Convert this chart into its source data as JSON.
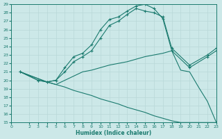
{
  "xlabel": "Humidex (Indice chaleur)",
  "bg_color": "#cce8e8",
  "line_color": "#1a7a6e",
  "grid_color": "#b8d8d8",
  "xlim": [
    0,
    23
  ],
  "ylim": [
    15,
    29
  ],
  "xticks": [
    0,
    2,
    3,
    4,
    5,
    6,
    7,
    8,
    9,
    10,
    11,
    12,
    13,
    14,
    15,
    16,
    17,
    18,
    19,
    20,
    21,
    22,
    23
  ],
  "yticks": [
    15,
    16,
    17,
    18,
    19,
    20,
    21,
    22,
    23,
    24,
    25,
    26,
    27,
    28,
    29
  ],
  "lines": [
    {
      "x": [
        1,
        3,
        4,
        5,
        6,
        7,
        8,
        9,
        10,
        11,
        12,
        13,
        14,
        15,
        16,
        17,
        18,
        20,
        22,
        23
      ],
      "y": [
        21,
        20,
        19.8,
        20,
        21.5,
        22.8,
        23.2,
        24.2,
        26.0,
        27.2,
        27.5,
        28.2,
        28.8,
        29.0,
        28.5,
        27.3,
        23.5,
        21.5,
        22.8,
        23.5
      ],
      "has_markers": true
    },
    {
      "x": [
        1,
        3,
        4,
        5,
        6,
        7,
        8,
        9,
        10,
        11,
        12,
        13,
        14,
        15,
        16,
        17,
        18,
        20,
        22,
        23
      ],
      "y": [
        21,
        20,
        19.8,
        20,
        21.0,
        22.2,
        22.8,
        23.5,
        25.0,
        26.5,
        27.0,
        27.8,
        28.5,
        28.2,
        28.0,
        27.5,
        23.8,
        21.8,
        23.0,
        23.8
      ],
      "has_markers": true
    },
    {
      "x": [
        1,
        3,
        4,
        5,
        6,
        7,
        8,
        9,
        10,
        11,
        12,
        13,
        14,
        15,
        16,
        17,
        18,
        19,
        20,
        21,
        22,
        23
      ],
      "y": [
        21,
        20.2,
        19.8,
        19.5,
        20.0,
        20.5,
        21.0,
        21.2,
        21.5,
        21.8,
        22.0,
        22.2,
        22.5,
        22.8,
        23.0,
        23.2,
        23.5,
        21.2,
        21.0,
        19.2,
        17.5,
        15.0
      ],
      "has_markers": false
    },
    {
      "x": [
        1,
        3,
        4,
        5,
        6,
        7,
        8,
        9,
        10,
        11,
        12,
        13,
        14,
        15,
        16,
        17,
        18,
        19,
        20,
        21,
        22,
        23
      ],
      "y": [
        21,
        20.2,
        19.8,
        19.5,
        19.2,
        18.8,
        18.5,
        18.2,
        17.8,
        17.5,
        17.2,
        16.8,
        16.5,
        16.2,
        15.8,
        15.5,
        15.2,
        15.0,
        15.0,
        15.0,
        15.0,
        15.0
      ],
      "has_markers": false
    }
  ]
}
